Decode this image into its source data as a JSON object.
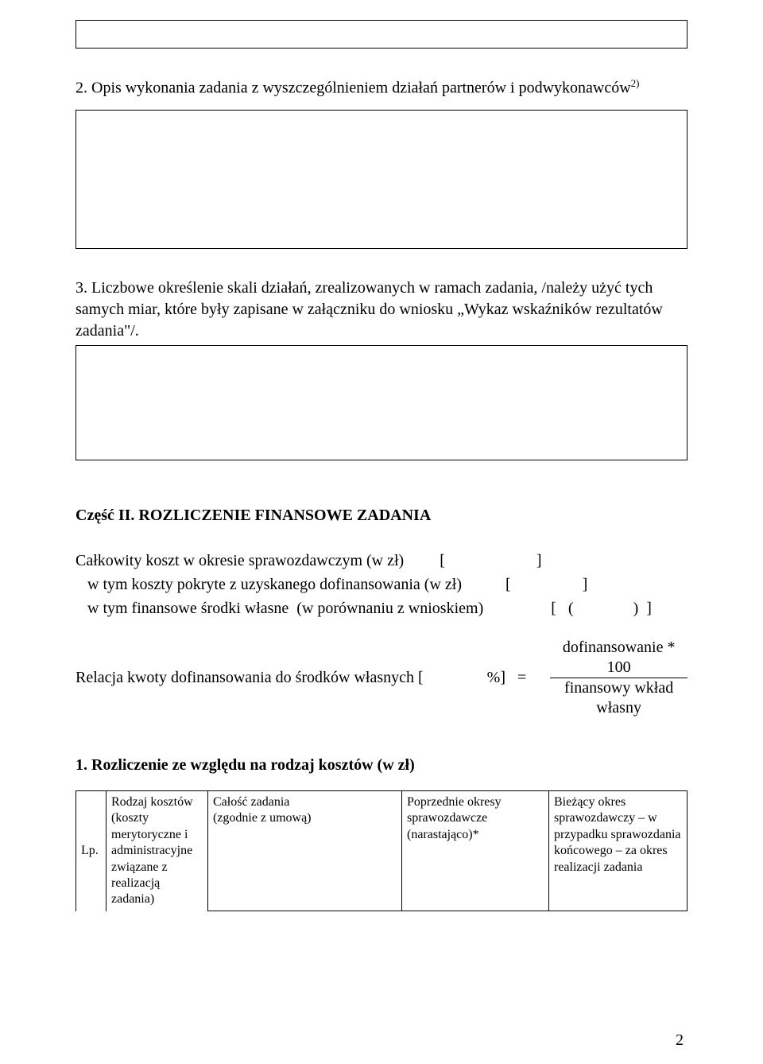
{
  "heading2_prefix": "2. Opis wykonania zadania z wyszczególnieniem działań partnerów i podwykonawców",
  "heading2_sup": "2)",
  "para3": "3. Liczbowe określenie skali działań, zrealizowanych w ramach zadania, /należy użyć tych samych miar, które były zapisane w załączniku do wniosku „Wykaz wskaźników rezultatów zadania\"/.",
  "section_title": "Część II. ROZLICZENIE FINANSOWE ZADANIA",
  "lines_block": "Całkowity koszt w okresie sprawozdawczym (w zł)         [                       ]\n   w tym koszty pokryte z uzyskanego dofinansowania (w zł)           [                  ]\n   w tym finansowe środki własne  (w porównaniu z wnioskiem)                 [   (               )  ]",
  "formula_left": "Relacja kwoty dofinansowania do środków własnych [                %]   =",
  "fraction_num": "dofinansowanie * 100",
  "fraction_den": "finansowy wkład własny",
  "sub_title": "1. Rozliczenie ze względu na rodzaj kosztów (w zł)",
  "table": {
    "lp": "Lp.",
    "rodzaj": "Rodzaj kosztów (koszty merytoryczne i administracyjne związane z realizacją zadania)",
    "calosc": "Całość zadania\n(zgodnie z umową)",
    "poprz": "Poprzednie okresy sprawozdawcze (narastająco)*",
    "biez": "Bieżący okres sprawozdawczy – w przypadku sprawozdania końcowego – za okres realizacji zadania"
  },
  "page_number": "2",
  "colors": {
    "text": "#000000",
    "bg": "#ffffff",
    "border": "#000000"
  }
}
